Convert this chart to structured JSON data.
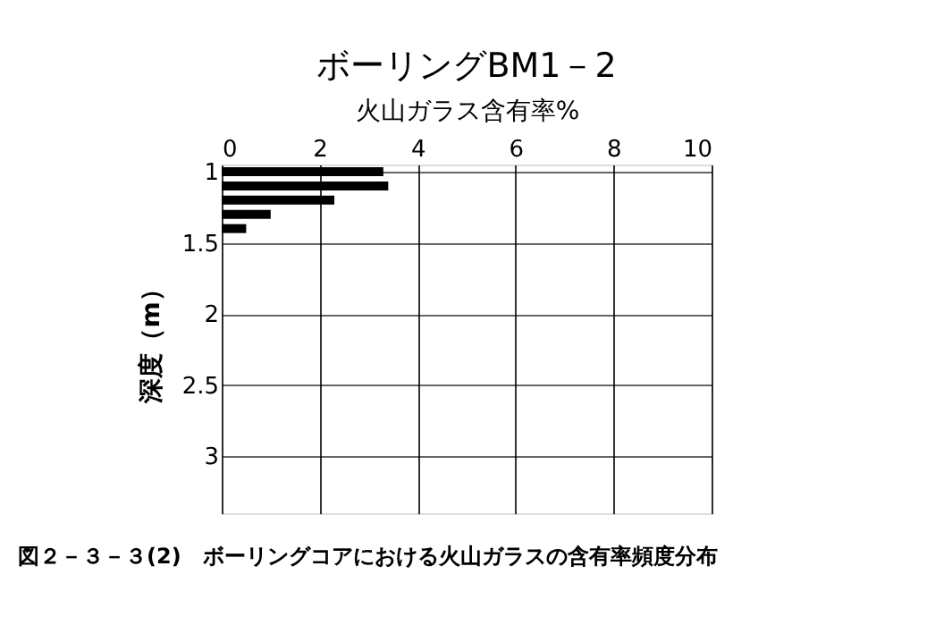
{
  "chart_data": {
    "type": "bar",
    "orientation": "horizontal",
    "title": "ボーリングBM1－2",
    "xlabel": "火山ガラス含有率%",
    "ylabel": "深度（m）",
    "x": [
      1.0,
      1.1,
      1.2,
      1.3,
      1.4
    ],
    "values": [
      3.3,
      3.4,
      2.3,
      1.0,
      0.5
    ],
    "color": "#000000",
    "xlim": [
      0,
      10
    ],
    "xticks": [
      0,
      2,
      4,
      6,
      8,
      10
    ],
    "ylim": [
      3.4,
      0.95
    ],
    "yticks": [
      1,
      1.5,
      2,
      2.5,
      3
    ],
    "grid": true,
    "annotations": [
      "図２－３－３(2)　ボーリングコアにおける火山ガラスの含有率頻度分布"
    ]
  }
}
